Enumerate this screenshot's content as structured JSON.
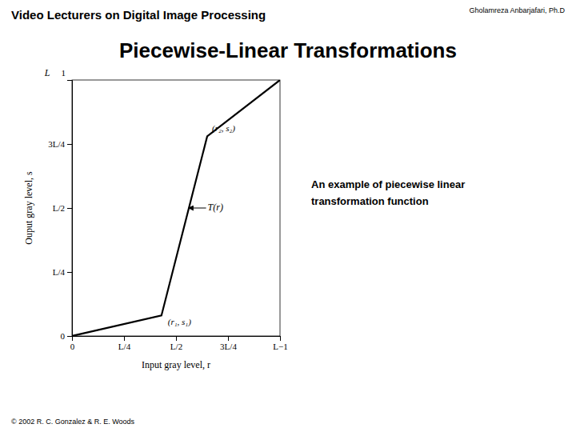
{
  "chart_data": {
    "type": "line",
    "title": "Piecewise-Linear Transformations",
    "xlabel": "Input gray level, r",
    "ylabel": "Ouput gray level, s",
    "x": [
      0.0,
      0.43,
      0.65,
      1.0
    ],
    "values": [
      0.0,
      0.08,
      0.78,
      1.0
    ],
    "color": "#000000",
    "xlim": [
      0.0,
      1.0
    ],
    "ylim": [
      0.0,
      1.0
    ],
    "xticks": [
      0,
      {
        "value": 0.25,
        "label": "L/4"
      },
      {
        "value": 0.5,
        "label": "L/2"
      },
      {
        "value": 0.75,
        "label": "3L/4"
      },
      {
        "value": 1.0,
        "label": "L−1"
      }
    ],
    "yticks": [
      0,
      {
        "value": 0.25,
        "label": "L/4"
      },
      {
        "value": 0.5,
        "label": "L/2"
      },
      {
        "value": 0.75,
        "label": "3L/4"
      }
    ],
    "grid": false,
    "annotations": [
      {
        "text": "Video Lecturers on Digital Image Processing"
      },
      {
        "text": "Gholamreza Anbarjafari,  Ph.D"
      },
      {
        "text": "An example of piecewise linear"
      },
      {
        "text": "transformation function"
      },
      {
        "text": "© 2002 R. C. Gonzalez & R. E. Woods"
      },
      {
        "text": "1"
      },
      {
        "text": "L"
      },
      {
        "text": "(r₁, s₁)",
        "x": 0.43,
        "y": 0.08
      },
      {
        "text": "(r₂, s₂)",
        "x": 0.65,
        "y": 0.78
      },
      {
        "text": "T(r)",
        "x": 0.56,
        "y": 0.5
      }
    ]
  }
}
